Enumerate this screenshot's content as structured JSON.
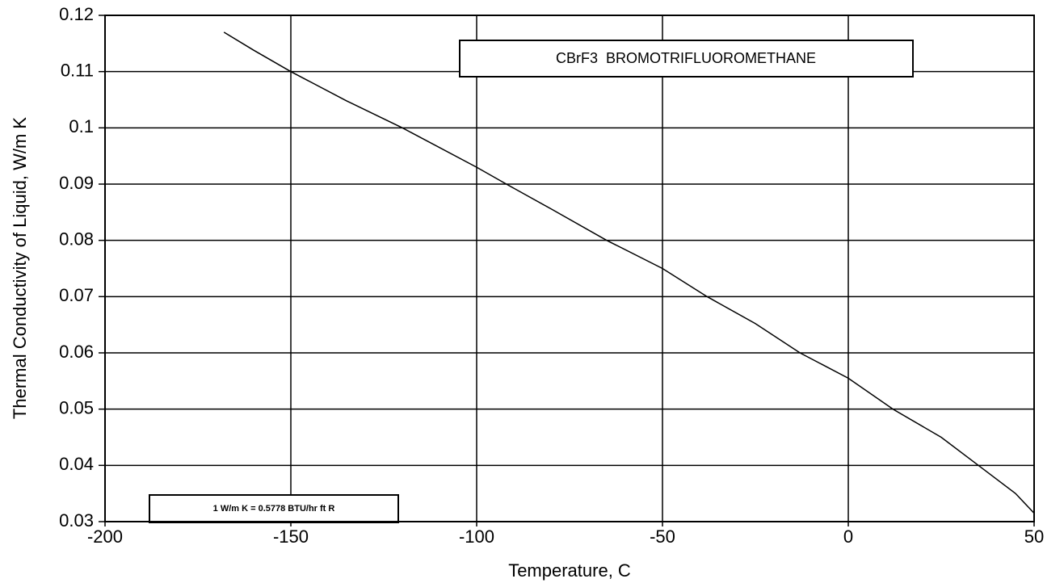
{
  "chart_data": {
    "type": "line",
    "x_label": "Temperature, C",
    "y_label": "Thermal Conductivity of Liquid, W/m K",
    "annotations": [
      "CBrF3  BROMOTRIFLUOROMETHANE",
      "1 W/m K = 0.5778 BTU/hr ft R"
    ],
    "x": [
      -168,
      -160,
      -150,
      -135,
      -120,
      -100,
      -92,
      -80,
      -65,
      -50,
      -38,
      -25,
      -13,
      0,
      12,
      25,
      35,
      45,
      50
    ],
    "values": [
      0.117,
      0.1138,
      0.11,
      0.1048,
      0.1,
      0.093,
      0.09,
      0.0856,
      0.08,
      0.075,
      0.07,
      0.0652,
      0.06,
      0.0555,
      0.05,
      0.045,
      0.04,
      0.035,
      0.0315
    ],
    "color": "#000000",
    "xlim": [
      -200,
      50
    ],
    "xticks": [
      -200,
      -150,
      -100,
      -50,
      0,
      50
    ],
    "ylim": [
      0.03,
      0.12
    ],
    "yticks": [
      0.03,
      0.04,
      0.05,
      0.06,
      0.07,
      0.08,
      0.09,
      0.1,
      0.11,
      0.12
    ],
    "grid": true
  }
}
